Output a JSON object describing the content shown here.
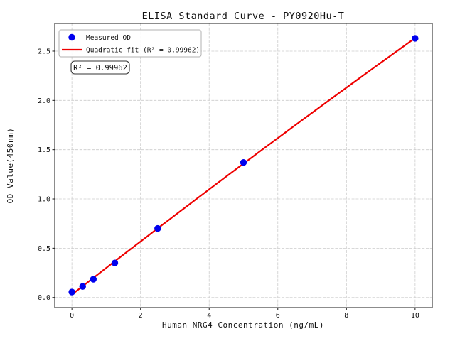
{
  "figure": {
    "title": "ELISA Standard Curve - PY0920Hu-T",
    "xlabel": "Human NRG4 Concentration (ng/mL)",
    "ylabel": "OD Value(450nm)",
    "annotation": "R² = 0.99962",
    "legend_items": [
      {
        "label": "Measured OD",
        "marker": "point",
        "color": "#0000ee"
      },
      {
        "label": "Quadratic fit (R² = 0.99962)",
        "marker": "line",
        "color": "#ee0000"
      }
    ]
  },
  "chart_data": {
    "type": "scatter",
    "title": "ELISA Standard Curve - PY0920Hu-T",
    "xlabel": "Human NRG4 Concentration (ng/mL)",
    "ylabel": "OD Value(450nm)",
    "grid": true,
    "legend_position": "upper left",
    "xlim": [
      -0.5,
      10.5
    ],
    "ylim": [
      -0.103,
      2.781
    ],
    "xticks": [
      0,
      2,
      4,
      6,
      8,
      10
    ],
    "xtick_labels": [
      "0",
      "2",
      "4",
      "6",
      "8",
      "10"
    ],
    "yticks": [
      0.0,
      0.5,
      1.0,
      1.5,
      2.0,
      2.5
    ],
    "ytick_labels": [
      "0.0",
      "0.5",
      "1.0",
      "1.5",
      "2.0",
      "2.5"
    ],
    "series": [
      {
        "name": "Measured OD",
        "type": "scatter",
        "color": "#0000ee",
        "x": [
          0,
          0.313,
          0.625,
          1.25,
          2.5,
          5,
          10
        ],
        "y": [
          0.055,
          0.112,
          0.185,
          0.35,
          0.7,
          1.37,
          2.63
        ]
      },
      {
        "name": "Quadratic fit (R² = 0.99962)",
        "type": "line",
        "color": "#ee0000",
        "fit": "quadratic",
        "coeffs": [
          0.0296,
          0.2713,
          -0.0011
        ],
        "x_range": [
          0,
          10
        ],
        "r_squared": 0.99962
      }
    ],
    "annotation": "R² = 0.99962",
    "colors": {
      "point": "#0000ee",
      "fit_line": "#ee0000",
      "grid": "#cccccc",
      "spine": "#1a1a1a",
      "background": "#ffffff"
    }
  }
}
